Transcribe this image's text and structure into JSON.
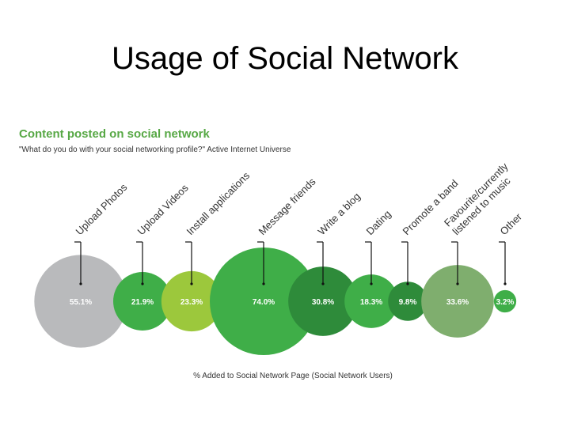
{
  "slide": {
    "title": "Usage of Social Network"
  },
  "chart_data": {
    "type": "bubble",
    "title": "Content posted on social network",
    "subtitle": "\"What do you do with your social networking profile?\" Active Internet Universe",
    "xlabel": "% Added to Social Network Page (Social Network Users)",
    "value_suffix": "%",
    "categories": [
      "Upload Photos",
      "Upload Videos",
      "Install applications",
      "Message friends",
      "Write a blog",
      "Dating",
      "Promote a band",
      "Favourite/currently listened to music",
      "Other"
    ],
    "category_label_lines": [
      [
        "Upload Photos"
      ],
      [
        "Upload Videos"
      ],
      [
        "Install applications"
      ],
      [
        "Message friends"
      ],
      [
        "Write a blog"
      ],
      [
        "Dating"
      ],
      [
        "Promote a band"
      ],
      [
        "Favourite/currently",
        "listened to music"
      ],
      [
        "Other"
      ]
    ],
    "values": [
      55.1,
      21.9,
      23.3,
      74.0,
      30.8,
      18.3,
      9.8,
      33.6,
      3.2
    ],
    "value_labels": [
      "55.1%",
      "21.9%",
      "23.3%",
      "74.0%",
      "30.8%",
      "18.3%",
      "9.8%",
      "33.6%",
      "3.2%"
    ],
    "colors": [
      "#b9babc",
      "#3fae48",
      "#9cc83c",
      "#3fae48",
      "#2e8b3a",
      "#3fae48",
      "#2e8b3a",
      "#7fae6e",
      "#3fae48"
    ]
  }
}
